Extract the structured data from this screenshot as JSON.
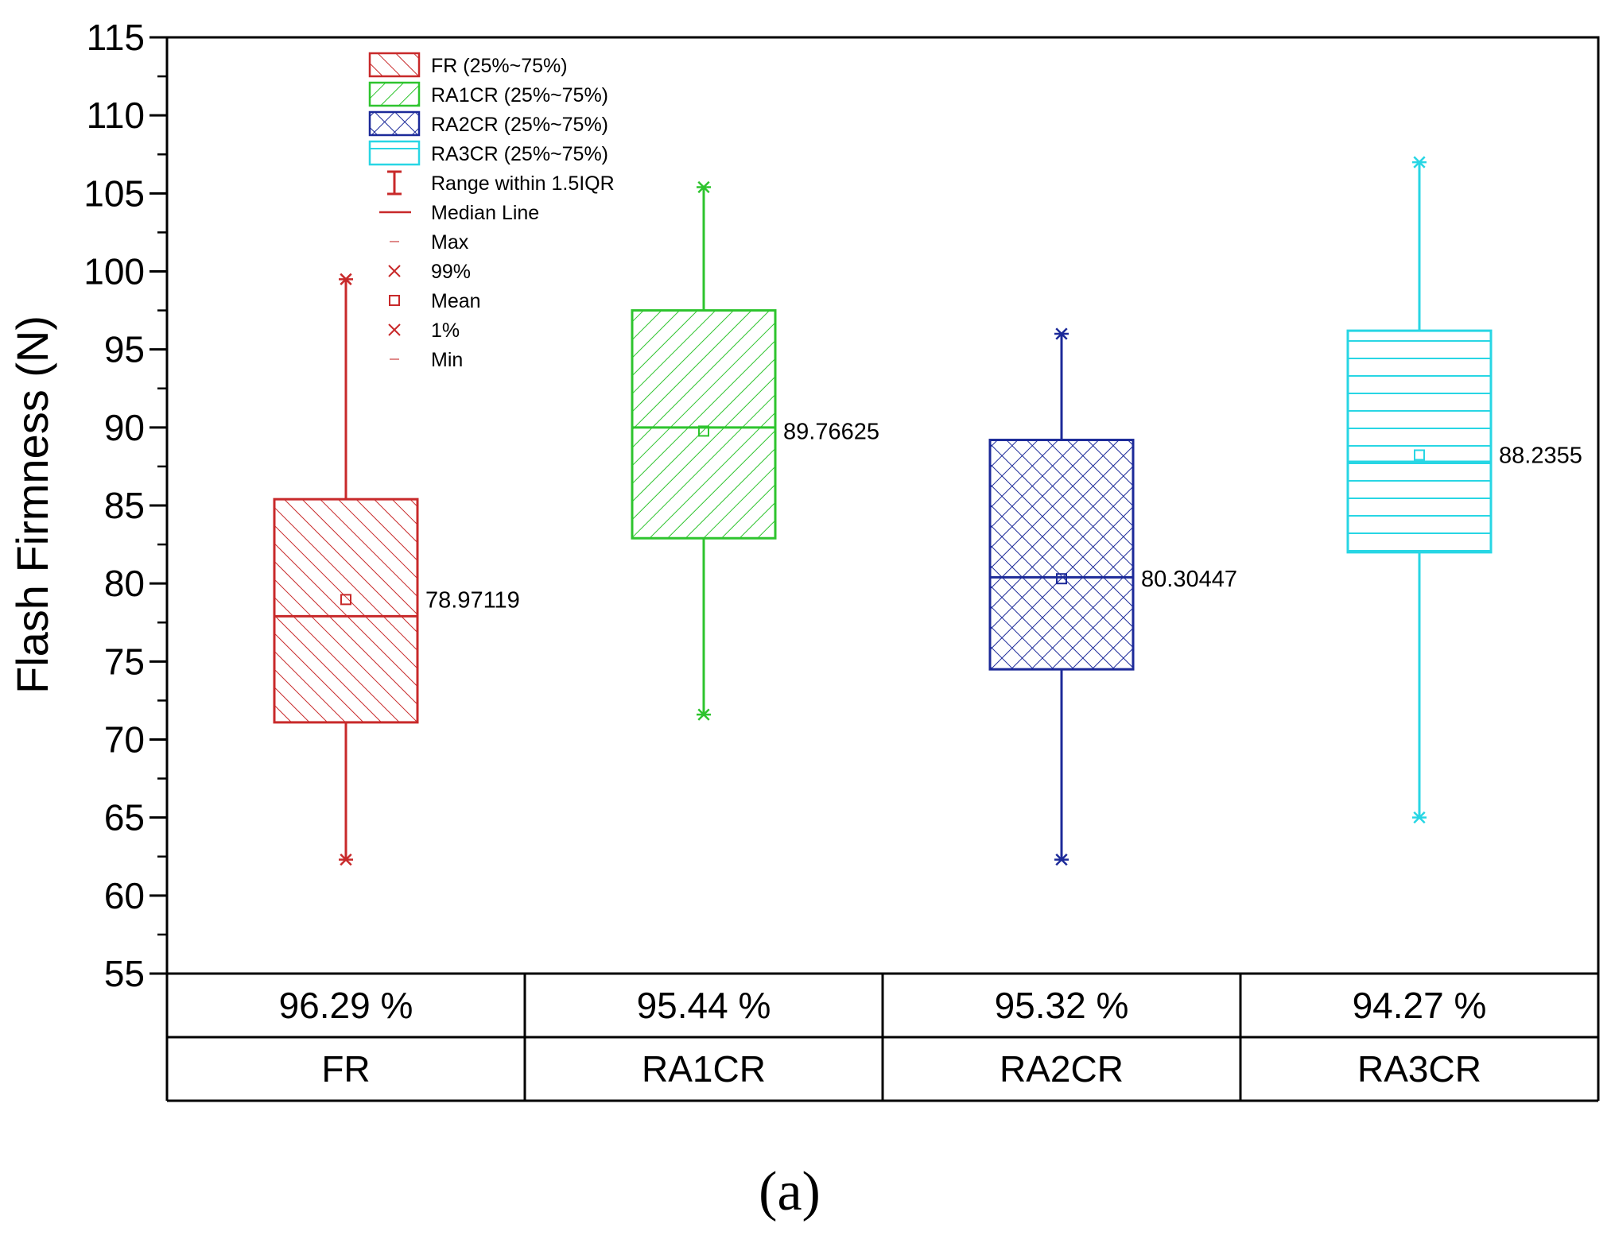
{
  "chart_data": {
    "type": "box",
    "title": "",
    "xlabel": "",
    "ylabel": "Flash Firmness (N)",
    "ylim": [
      55,
      115
    ],
    "yticks": [
      55,
      60,
      65,
      70,
      75,
      80,
      85,
      90,
      95,
      100,
      105,
      110,
      115
    ],
    "categories": [
      "FR",
      "RA1CR",
      "RA2CR",
      "RA3CR"
    ],
    "series": [
      {
        "name": "FR",
        "color": "#c8292a",
        "pattern": "diag-right",
        "q1": 71.1,
        "median": 77.9,
        "q3": 85.4,
        "mean": 78.97119,
        "mean_label": "78.97119",
        "whisker_low": 62.3,
        "whisker_high": 99.5,
        "table_value": "96.29 %"
      },
      {
        "name": "RA1CR",
        "color": "#2ec42e",
        "pattern": "diag-left",
        "q1": 82.9,
        "median": 90.0,
        "q3": 97.5,
        "mean": 89.76625,
        "mean_label": "89.76625",
        "whisker_low": 71.6,
        "whisker_high": 105.4,
        "table_value": "95.44 %"
      },
      {
        "name": "RA2CR",
        "color": "#1c2a99",
        "pattern": "crosshatch",
        "q1": 74.5,
        "median": 80.4,
        "q3": 89.2,
        "mean": 80.30447,
        "mean_label": "80.30447",
        "whisker_low": 62.3,
        "whisker_high": 96.0,
        "table_value": "95.32 %"
      },
      {
        "name": "RA3CR",
        "color": "#28d6e4",
        "pattern": "horizontal",
        "q1": 82.0,
        "median": 87.8,
        "q3": 96.2,
        "mean": 88.2355,
        "mean_label": "88.2355",
        "whisker_low": 65.0,
        "whisker_high": 107.0,
        "table_value": "94.27 %"
      }
    ],
    "legend": {
      "position": "top-left",
      "box_entries": [
        {
          "label": "FR (25%~75%)",
          "series": 0
        },
        {
          "label": "RA1CR (25%~75%)",
          "series": 1
        },
        {
          "label": "RA2CR (25%~75%)",
          "series": 2
        },
        {
          "label": "RA3CR (25%~75%)",
          "series": 3
        }
      ],
      "symbol_entries": [
        {
          "label": "Range within 1.5IQR",
          "symbol": "range"
        },
        {
          "label": "Median Line",
          "symbol": "line"
        },
        {
          "label": "Max",
          "symbol": "dash"
        },
        {
          "label": "99%",
          "symbol": "cross"
        },
        {
          "label": "Mean",
          "symbol": "square"
        },
        {
          "label": "1%",
          "symbol": "cross"
        },
        {
          "label": "Min",
          "symbol": "dash"
        }
      ]
    },
    "table_rows": [
      [
        "96.29 %",
        "95.44 %",
        "95.32 %",
        "94.27 %"
      ],
      [
        "FR",
        "RA1CR",
        "RA2CR",
        "RA3CR"
      ]
    ]
  },
  "caption": "(a)"
}
